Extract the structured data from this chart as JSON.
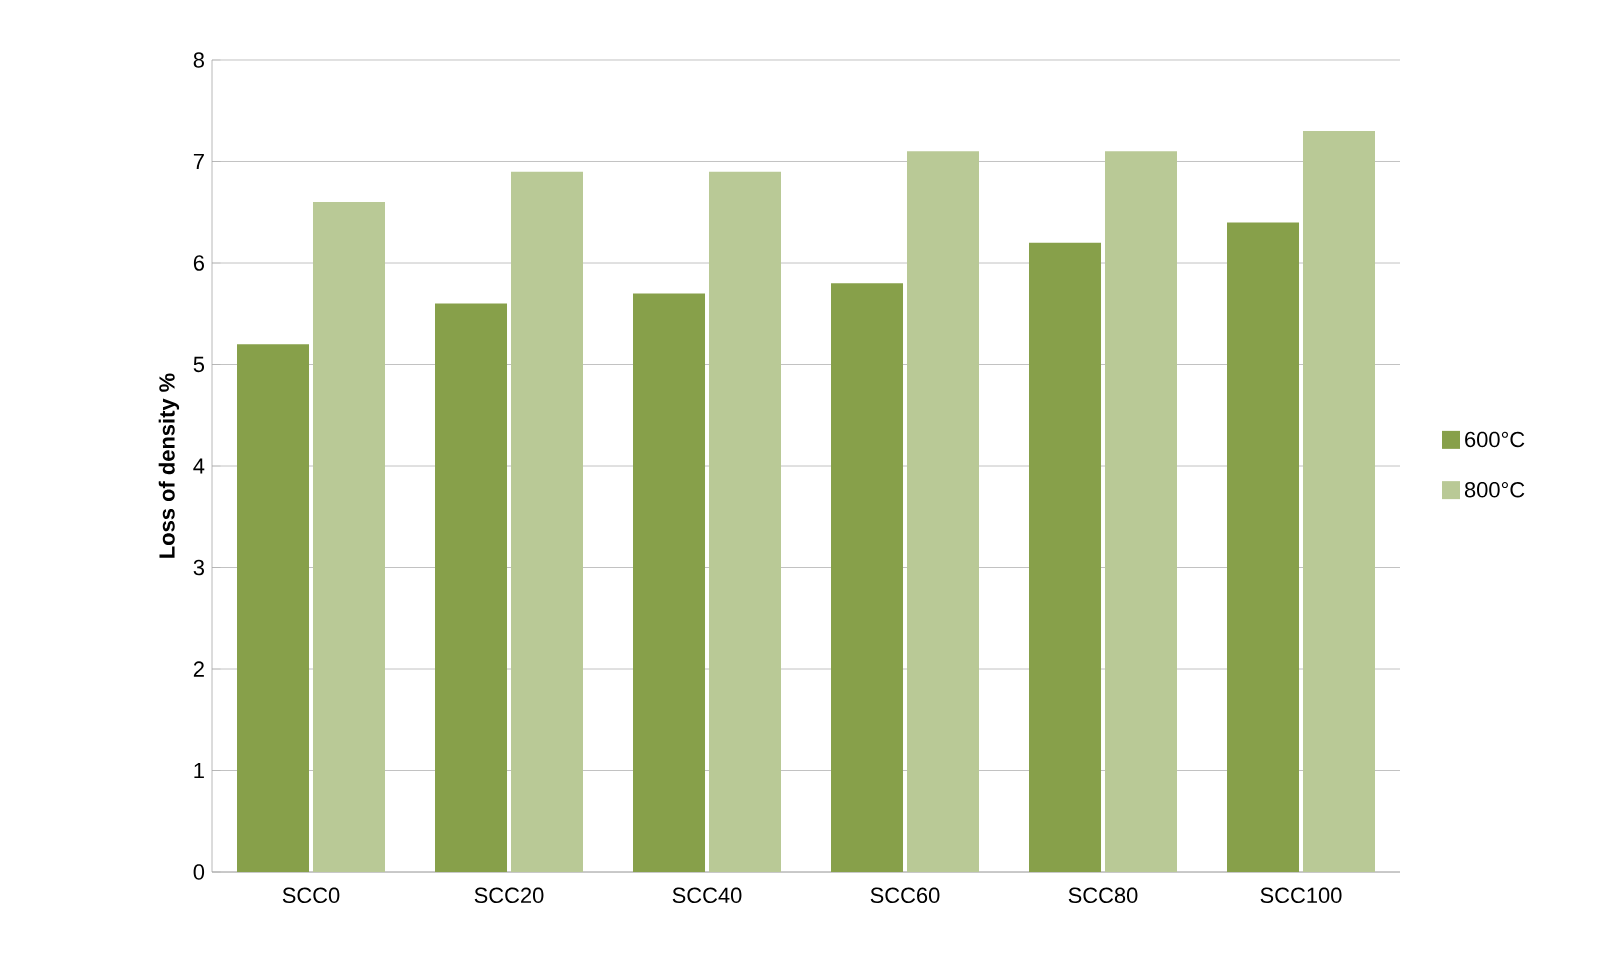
{
  "chart_data": {
    "type": "bar",
    "ylabel": "**Loss of density %**",
    "categories": [
      "SCC0",
      "SCC20",
      "SCC40",
      "SCC60",
      "SCC80",
      "SCC100"
    ],
    "series": [
      {
        "name": "600°C",
        "color": "#87a04a",
        "values": [
          5.2,
          5.6,
          5.7,
          5.8,
          6.2,
          6.4
        ]
      },
      {
        "name": "800°C",
        "color": "#b9c996",
        "values": [
          6.6,
          6.9,
          6.9,
          7.1,
          7.1,
          7.3
        ]
      }
    ],
    "ylim": [
      0,
      8
    ],
    "yticks": [
      0,
      1,
      2,
      3,
      4,
      5,
      6,
      7,
      8
    ],
    "grid": "y",
    "legend": "right"
  }
}
